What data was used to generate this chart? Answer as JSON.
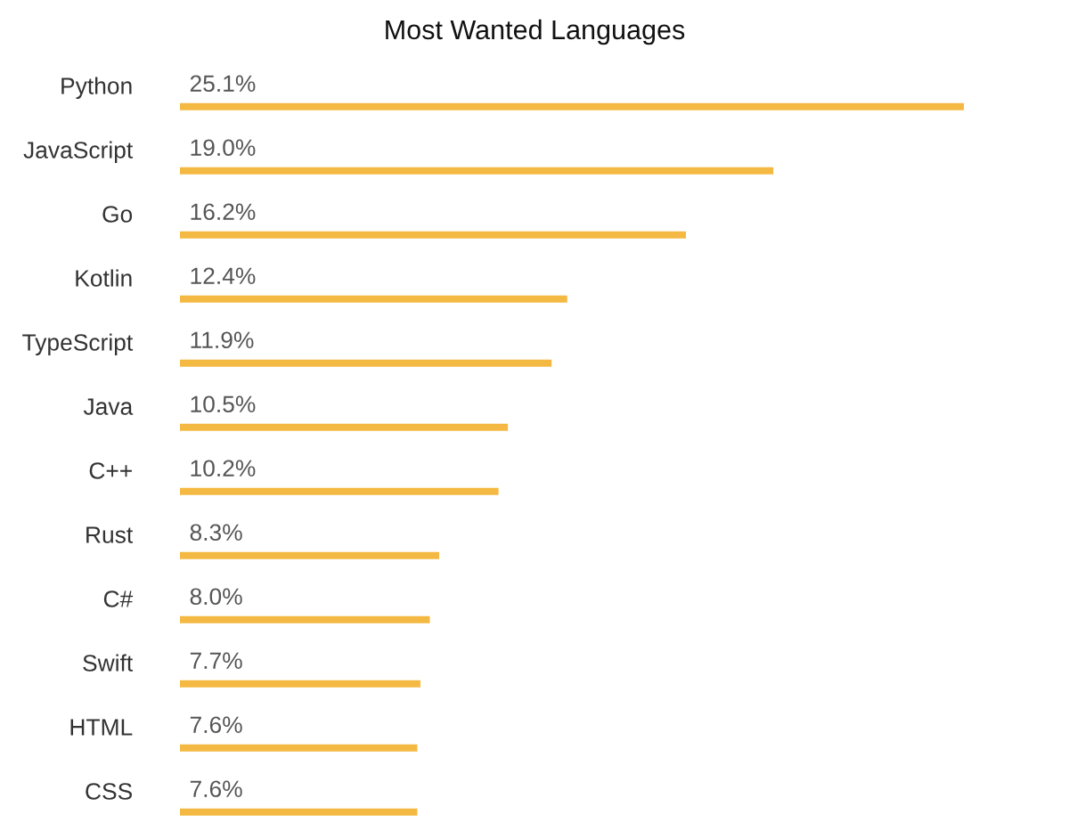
{
  "chart_data": {
    "type": "bar",
    "orientation": "horizontal",
    "title": "Most Wanted Languages",
    "categories": [
      "Python",
      "JavaScript",
      "Go",
      "Kotlin",
      "TypeScript",
      "Java",
      "C++",
      "Rust",
      "C#",
      "Swift",
      "HTML",
      "CSS"
    ],
    "values": [
      25.1,
      19.0,
      16.2,
      12.4,
      11.9,
      10.5,
      10.2,
      8.3,
      8.0,
      7.7,
      7.6,
      7.6
    ],
    "value_labels": [
      "25.1%",
      "19.0%",
      "16.2%",
      "12.4%",
      "11.9%",
      "10.5%",
      "10.2%",
      "8.3%",
      "8.0%",
      "7.7%",
      "7.6%",
      "7.6%"
    ],
    "color": "#f4b942",
    "grid": false,
    "legend": false
  }
}
